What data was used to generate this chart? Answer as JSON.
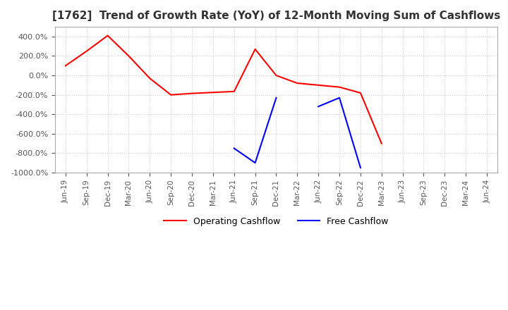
{
  "title": "[1762]  Trend of Growth Rate (YoY) of 12-Month Moving Sum of Cashflows",
  "ylim": [
    -1000,
    500
  ],
  "yticks": [
    400,
    200,
    0,
    -200,
    -400,
    -600,
    -800,
    -1000
  ],
  "legend": [
    "Operating Cashflow",
    "Free Cashflow"
  ],
  "line_colors": [
    "red",
    "blue"
  ],
  "background_color": "#ffffff",
  "grid_color": "#cccccc",
  "x_labels": [
    "Jun-19",
    "Sep-19",
    "Dec-19",
    "Mar-20",
    "Jun-20",
    "Sep-20",
    "Dec-20",
    "Mar-21",
    "Jun-21",
    "Sep-21",
    "Dec-21",
    "Mar-22",
    "Jun-22",
    "Sep-22",
    "Dec-22",
    "Mar-23",
    "Jun-23",
    "Sep-23",
    "Dec-23",
    "Mar-24",
    "Jun-24"
  ],
  "operating_cashflow": [
    100,
    250,
    410,
    200,
    -30,
    -200,
    -185,
    -175,
    -165,
    270,
    0,
    -80,
    -100,
    -120,
    -180,
    -700,
    null,
    null,
    null,
    null,
    null
  ],
  "free_cashflow_seg1": [
    null,
    null,
    null,
    null,
    null,
    null,
    null,
    null,
    -750,
    -900,
    -230,
    null,
    null,
    null,
    null,
    null,
    null,
    null,
    null,
    null,
    null
  ],
  "free_cashflow_seg2": [
    null,
    null,
    null,
    null,
    null,
    null,
    null,
    null,
    null,
    null,
    null,
    null,
    -320,
    -230,
    -950,
    null,
    null,
    null,
    null,
    null,
    null
  ]
}
